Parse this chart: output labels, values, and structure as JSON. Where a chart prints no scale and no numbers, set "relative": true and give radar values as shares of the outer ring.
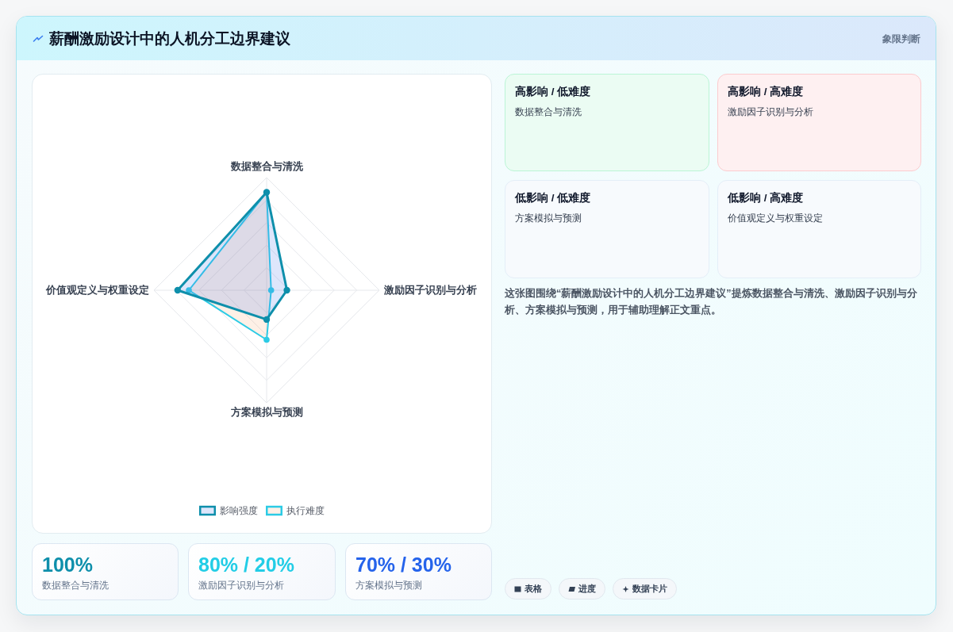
{
  "chart_data": [
    {
      "type": "other",
      "title": "薪酬激励设计中的人机分工边界建议",
      "subtitle": "象限判断"
    },
    {
      "type": "radar",
      "categories": [
        "数据整合与清洗",
        "激励因子识别与分析",
        "方案模拟与预测",
        "价值观定义与权重设定"
      ],
      "relative": true,
      "series": [
        {
          "name": "影响强度",
          "color": "#0e8fab",
          "values": [
            0.87,
            0.18,
            0.26,
            0.79
          ]
        },
        {
          "name": "执行难度",
          "color": "#2ccbe5",
          "values": [
            0.87,
            0.04,
            0.44,
            0.69
          ]
        }
      ],
      "grid": true,
      "legend": "bottom",
      "marker": "circle"
    },
    {
      "type": "other",
      "annotations": [
        "高影响 / 低难度",
        "数据整合与清洗",
        "高影响 / 高难度",
        "激励因子识别与分析",
        "低影响 / 低难度",
        "方案模拟与预测",
        "低影响 / 高难度",
        "价值观定义与权重设定"
      ],
      "colors": [
        "#ebfcf3",
        "#fef0f1",
        "#f7fafd",
        "#f7fafd"
      ]
    },
    {
      "type": "other",
      "annotations": [
        "这张图围绕“薪酬激励设计中的人机分工边界建议”提炼数据整合与清洗、激励因子识别与分析、方案模拟与预测，用于辅助理解正文重点。"
      ]
    },
    {
      "type": "other",
      "annotations": [
        "100%",
        "数据整合与清洗",
        "80% / 20%",
        "激励因子识别与分析",
        "70% / 30%",
        "方案模拟与预测"
      ],
      "colors": [
        "#0e8fab",
        "#22cde6",
        "#2563eb"
      ]
    },
    {
      "type": "other",
      "annotations": [
        "表格",
        "进度",
        "数据卡片"
      ]
    }
  ]
}
